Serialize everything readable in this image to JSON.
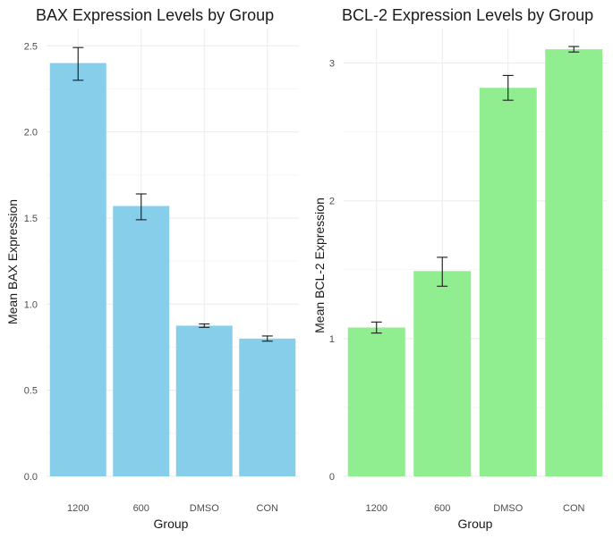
{
  "chart_data": [
    {
      "type": "bar",
      "title": "BAX Expression Levels by Group",
      "xlabel": "Group",
      "ylabel": "Mean BAX Expression",
      "categories": [
        "1200",
        "600",
        "DMSO",
        "CON"
      ],
      "values": [
        2.4,
        1.57,
        0.875,
        0.8
      ],
      "error_low": [
        2.3,
        1.49,
        0.865,
        0.785
      ],
      "error_high": [
        2.49,
        1.64,
        0.885,
        0.815
      ],
      "ylim": [
        0,
        2.6
      ],
      "yticks": [
        0,
        0.5,
        1.0,
        1.5,
        2.0,
        2.5
      ],
      "ytick_labels": [
        "0.0",
        "0.5",
        "1.0",
        "1.5",
        "2.0",
        "2.5"
      ],
      "color": "#87CEEB",
      "grid": true
    },
    {
      "type": "bar",
      "title": "BCL-2 Expression Levels by Group",
      "xlabel": "Group",
      "ylabel": "Mean BCL-2 Expression",
      "categories": [
        "1200",
        "600",
        "DMSO",
        "CON"
      ],
      "values": [
        1.08,
        1.49,
        2.82,
        3.1
      ],
      "error_low": [
        1.04,
        1.38,
        2.73,
        3.08
      ],
      "error_high": [
        1.12,
        1.59,
        2.91,
        3.12
      ],
      "ylim": [
        0,
        3.25
      ],
      "yticks": [
        0,
        1,
        2,
        3
      ],
      "ytick_labels": [
        "0",
        "1",
        "2",
        "3"
      ],
      "color": "#90EE90",
      "grid": true
    }
  ]
}
